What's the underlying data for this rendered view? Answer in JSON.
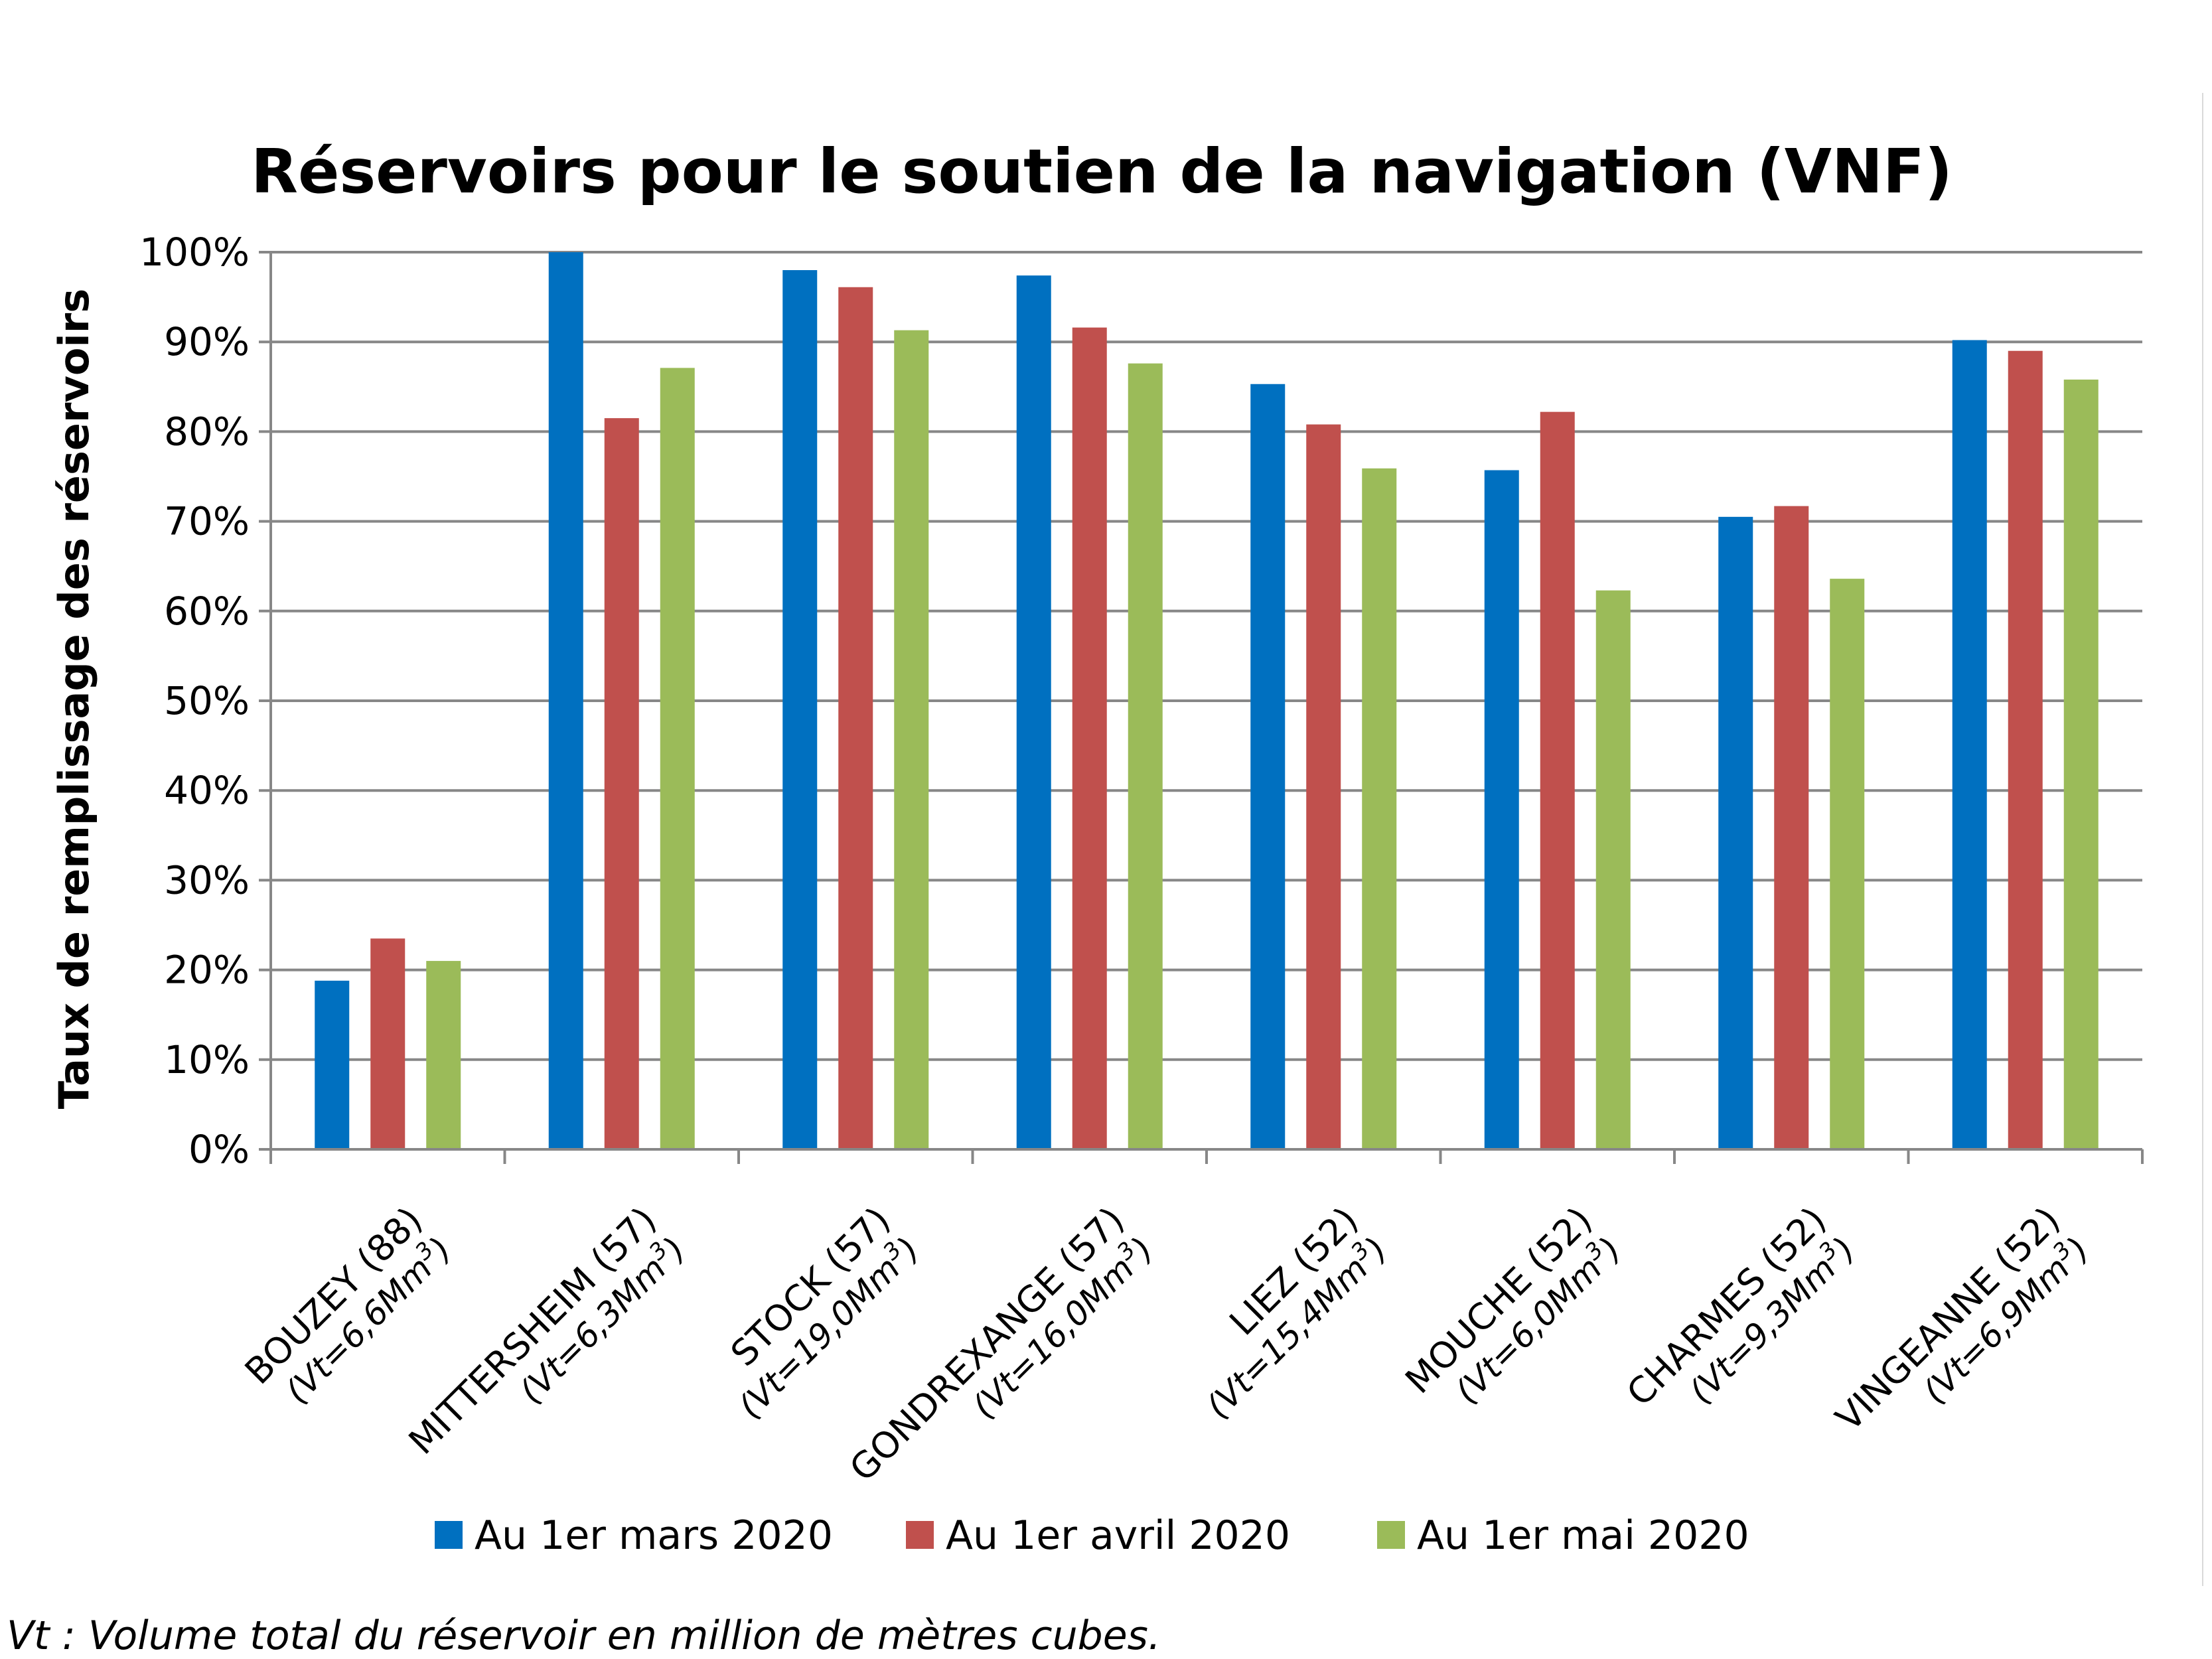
{
  "chart_data": {
    "type": "bar",
    "title": "Réservoirs pour le soutien de la navigation (VNF)",
    "ylabel": "Taux de remplissage des réservoirs",
    "xlabel": "",
    "ylim": [
      0,
      100
    ],
    "y_ticks": [
      "0%",
      "10%",
      "20%",
      "30%",
      "40%",
      "50%",
      "60%",
      "70%",
      "80%",
      "90%",
      "100%"
    ],
    "grid": true,
    "legend_position": "bottom",
    "categories": [
      {
        "name": "BOUZEY (88)",
        "volume": "(Vt=6,6Mm",
        "sup": "3",
        "close": ")"
      },
      {
        "name": "MITTERSHEIM (57)",
        "volume": "(Vt=6,3Mm",
        "sup": "3",
        "close": ")"
      },
      {
        "name": "STOCK (57)",
        "volume": "(Vt=19,0Mm",
        "sup": "3",
        "close": ")"
      },
      {
        "name": "GONDREXANGE (57)",
        "volume": "(Vt=16,0Mm",
        "sup": "3",
        "close": ")"
      },
      {
        "name": "LIEZ (52)",
        "volume": "(Vt=15,4Mm",
        "sup": "3",
        "close": ")"
      },
      {
        "name": "MOUCHE (52)",
        "volume": "(Vt=6,0Mm",
        "sup": "3",
        "close": ")"
      },
      {
        "name": "CHARMES (52)",
        "volume": "(Vt=9,3Mm",
        "sup": "3",
        "close": ")"
      },
      {
        "name": "VINGEANNE (52)",
        "volume": "(Vt=6,9Mm",
        "sup": "3",
        "close": ")"
      }
    ],
    "series": [
      {
        "name": "Au 1er mars 2020",
        "color": "#0070c0",
        "values": [
          18.8,
          100,
          98,
          97.4,
          85.3,
          75.7,
          70.5,
          90.2
        ]
      },
      {
        "name": "Au 1er avril 2020",
        "color": "#c0504d",
        "values": [
          23.5,
          81.5,
          96.1,
          91.6,
          80.8,
          82.2,
          71.7,
          89.0
        ]
      },
      {
        "name": "Au 1er mai 2020",
        "color": "#9bbb59",
        "values": [
          21.0,
          87.1,
          91.3,
          87.6,
          75.9,
          62.3,
          63.6,
          85.8
        ]
      }
    ]
  },
  "footnote": "Vt : Volume total du réservoir en million de mètres cubes."
}
